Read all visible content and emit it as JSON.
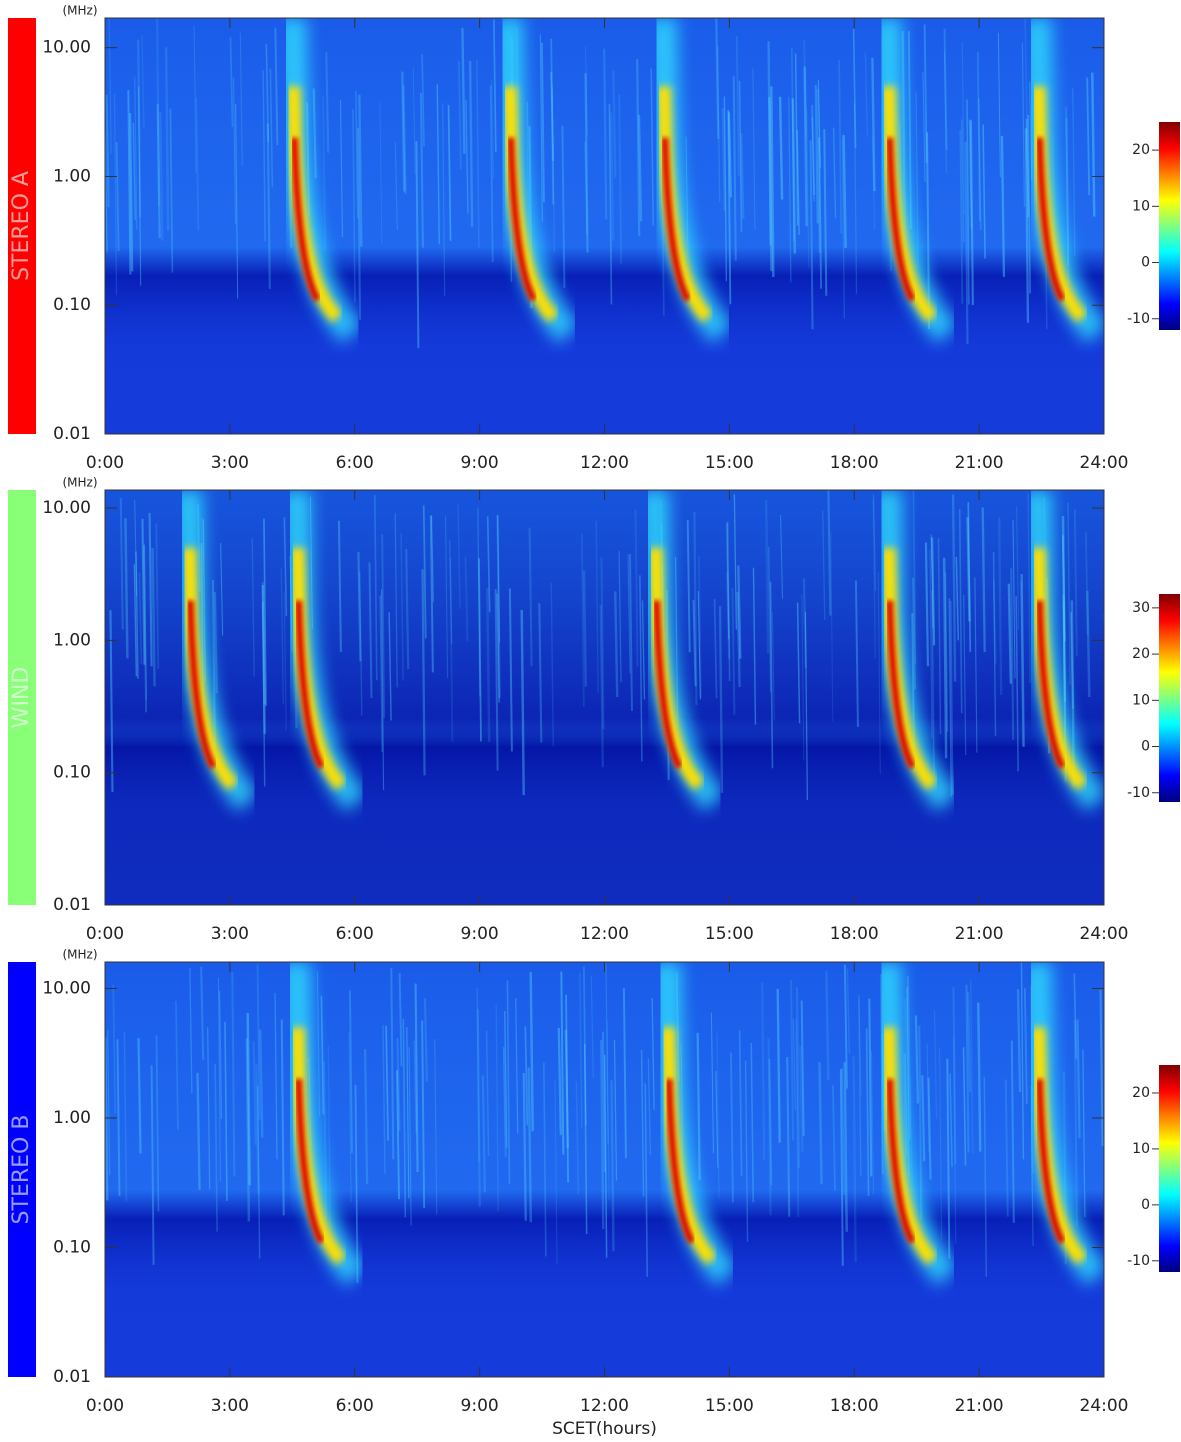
{
  "chart_data": [
    {
      "type": "spectrogram",
      "label": "STEREO A",
      "label_color": "#ff0000",
      "y_unit": "(MHz)",
      "log_y": true,
      "xlim": [
        0,
        24
      ],
      "ylim": [
        0.01,
        17
      ],
      "xticks": [
        {
          "value": 0,
          "label": "0:00"
        },
        {
          "value": 3,
          "label": "3:00"
        },
        {
          "value": 6,
          "label": "6:00"
        },
        {
          "value": 9,
          "label": "9:00"
        },
        {
          "value": 12,
          "label": "12:00"
        },
        {
          "value": 15,
          "label": "15:00"
        },
        {
          "value": 18,
          "label": "18:00"
        },
        {
          "value": 21,
          "label": "21:00"
        },
        {
          "value": 24,
          "label": "24:00"
        }
      ],
      "yticks": [
        0.01,
        {
          "value": 0.1,
          "label": "0.10"
        },
        {
          "value": 1,
          "label": "1.00"
        },
        {
          "value": 10,
          "label": "10.00"
        }
      ],
      "bursts": [
        4.5,
        9.7,
        13.4,
        18.8,
        22.4
      ],
      "colorbar": {
        "lim": [
          -12,
          25
        ],
        "ticks": [
          -10,
          0,
          10,
          20
        ],
        "colormap": [
          "#7f0000",
          "#ff0000",
          "#ff8000",
          "#ffff00",
          "#80ff80",
          "#00ffff",
          "#0080ff",
          "#0000ff",
          "#00007f"
        ]
      }
    },
    {
      "type": "spectrogram",
      "label": "WIND",
      "label_color": "#88ff77",
      "y_unit": "(MHz)",
      "log_y": true,
      "xlim": [
        0,
        24
      ],
      "ylim": [
        0.01,
        13.7
      ],
      "xticks": [
        {
          "value": 0,
          "label": "0:00"
        },
        {
          "value": 3,
          "label": "3:00"
        },
        {
          "value": 6,
          "label": "6:00"
        },
        {
          "value": 9,
          "label": "9:00"
        },
        {
          "value": 12,
          "label": "12:00"
        },
        {
          "value": 15,
          "label": "15:00"
        },
        {
          "value": 18,
          "label": "18:00"
        },
        {
          "value": 21,
          "label": "21:00"
        },
        {
          "value": 24,
          "label": "24:00"
        }
      ],
      "yticks": [
        0.01,
        {
          "value": 0.1,
          "label": "0.10"
        },
        {
          "value": 1,
          "label": "1.00"
        },
        {
          "value": 10,
          "label": "10.00"
        }
      ],
      "bursts": [
        2.0,
        4.6,
        13.2,
        18.8,
        22.4
      ],
      "colorbar": {
        "lim": [
          -12,
          33
        ],
        "ticks": [
          -10,
          0,
          10,
          20,
          30
        ],
        "colormap": [
          "#7f0000",
          "#ff0000",
          "#ff8000",
          "#ffff00",
          "#80ff80",
          "#00ffff",
          "#0080ff",
          "#0000ff",
          "#00007f"
        ]
      }
    },
    {
      "type": "spectrogram",
      "label": "STEREO B",
      "label_color": "#0000ff",
      "y_unit": "(MHz)",
      "log_y": true,
      "xlim": [
        0,
        24
      ],
      "ylim": [
        0.01,
        16
      ],
      "xlabel": "SCET(hours)",
      "xticks": [
        {
          "value": 0,
          "label": "0:00"
        },
        {
          "value": 3,
          "label": "3:00"
        },
        {
          "value": 6,
          "label": "6:00"
        },
        {
          "value": 9,
          "label": "9:00"
        },
        {
          "value": 12,
          "label": "12:00"
        },
        {
          "value": 15,
          "label": "15:00"
        },
        {
          "value": 18,
          "label": "18:00"
        },
        {
          "value": 21,
          "label": "21:00"
        },
        {
          "value": 24,
          "label": "24:00"
        }
      ],
      "yticks": [
        0.01,
        {
          "value": 0.1,
          "label": "0.10"
        },
        {
          "value": 1,
          "label": "1.00"
        },
        {
          "value": 10,
          "label": "10.00"
        }
      ],
      "bursts": [
        4.6,
        13.5,
        18.8,
        22.4
      ],
      "colorbar": {
        "lim": [
          -12,
          25
        ],
        "ticks": [
          -10,
          0,
          10,
          20
        ],
        "colormap": [
          "#7f0000",
          "#ff0000",
          "#ff8000",
          "#ffff00",
          "#80ff80",
          "#00ffff",
          "#0080ff",
          "#0000ff",
          "#00007f"
        ]
      }
    }
  ]
}
